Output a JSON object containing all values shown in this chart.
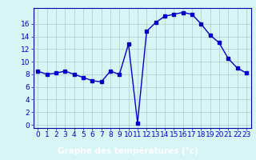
{
  "x": [
    0,
    1,
    2,
    3,
    4,
    5,
    6,
    7,
    8,
    9,
    10,
    11,
    12,
    13,
    14,
    15,
    16,
    17,
    18,
    19,
    20,
    21,
    22,
    23
  ],
  "y": [
    8.5,
    8.0,
    8.2,
    8.5,
    8.0,
    7.5,
    7.0,
    6.8,
    8.5,
    8.0,
    12.8,
    0.3,
    14.8,
    16.2,
    17.2,
    17.5,
    17.8,
    17.5,
    16.0,
    14.2,
    13.0,
    10.5,
    9.0,
    8.2
  ],
  "line_color": "#0000cc",
  "marker": "s",
  "markersize": 2.5,
  "linewidth": 1.0,
  "bg_color": "#d8f5f5",
  "grid_color": "#aacccc",
  "xlabel": "Graphe des températures (°c)",
  "xlabel_color": "#ffffff",
  "xlabel_bg": "#0000aa",
  "xlabel_fontsize": 7.5,
  "tick_fontsize": 6.5,
  "tick_color": "#0000cc",
  "ylim": [
    -0.5,
    18.5
  ],
  "yticks": [
    0,
    2,
    4,
    6,
    8,
    10,
    12,
    14,
    16
  ],
  "xlim": [
    -0.5,
    23.5
  ],
  "xticks": [
    0,
    1,
    2,
    3,
    4,
    5,
    6,
    7,
    8,
    9,
    10,
    11,
    12,
    13,
    14,
    15,
    16,
    17,
    18,
    19,
    20,
    21,
    22,
    23
  ]
}
